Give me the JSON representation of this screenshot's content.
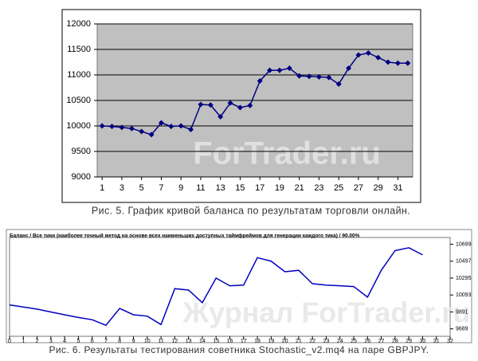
{
  "chart_data": [
    {
      "type": "line",
      "caption": "Рис. 5. График кривой баланса по результатам торговли онлайн.",
      "watermark": "ForTrader.ru",
      "x": [
        1,
        2,
        3,
        4,
        5,
        6,
        7,
        8,
        9,
        10,
        11,
        12,
        13,
        14,
        15,
        16,
        17,
        18,
        19,
        20,
        21,
        22,
        23,
        24,
        25,
        26,
        27,
        28,
        29,
        30,
        31,
        32
      ],
      "series": [
        {
          "color": "#000080",
          "values": [
            10000,
            9990,
            9970,
            9950,
            9890,
            9830,
            10060,
            9990,
            10000,
            9930,
            10420,
            10410,
            10180,
            10450,
            10360,
            10400,
            10880,
            11090,
            11090,
            11130,
            10980,
            10970,
            10960,
            10950,
            10820,
            11130,
            11390,
            11430,
            11340,
            11250,
            11230,
            11230
          ]
        }
      ],
      "xlim": [
        0.5,
        32.5
      ],
      "xticks": [
        1,
        3,
        5,
        7,
        9,
        11,
        13,
        15,
        17,
        19,
        21,
        23,
        25,
        27,
        29,
        31
      ],
      "ylim": [
        9000,
        12000
      ],
      "yticks": [
        9000,
        9500,
        10000,
        10500,
        11000,
        11500,
        12000
      ],
      "grid": true,
      "background": "#c0c0c0",
      "markers": true
    },
    {
      "type": "line",
      "title": "Баланс / Все тики (наиболее точный метод на основе всех наименьших доступных таймфреймов для генерации каждого тика) / 90.00%",
      "caption": "Рис. 6. Результаты тестирования советника Stochastic_v2.mq4 на паре GBPJPY.",
      "watermark": "Журнал ForTrader.ru",
      "x": [
        0,
        1,
        2,
        3,
        4,
        5,
        6,
        7,
        8,
        9,
        10,
        11,
        12,
        13,
        14,
        15,
        16,
        17,
        18,
        19,
        20,
        21,
        22,
        23,
        24,
        25,
        26,
        27,
        28,
        29,
        30
      ],
      "series": [
        {
          "color": "#0000c0",
          "values": [
            9975,
            9950,
            9925,
            9890,
            9857,
            9825,
            9798,
            9731,
            9933,
            9857,
            9841,
            9740,
            10169,
            10152,
            10001,
            10295,
            10203,
            10211,
            10539,
            10497,
            10371,
            10388,
            10228,
            10211,
            10203,
            10194,
            10068,
            10388,
            10623,
            10657,
            10573
          ]
        }
      ],
      "xlim": [
        0,
        32
      ],
      "xticks": [
        0,
        1,
        2,
        3,
        4,
        5,
        6,
        7,
        8,
        9,
        10,
        11,
        12,
        13,
        14,
        15,
        16,
        17,
        18,
        19,
        20,
        21,
        22,
        23,
        24,
        25,
        26,
        27,
        28,
        29,
        30,
        31,
        32
      ],
      "ylim": [
        9600,
        10780
      ],
      "yticks": [
        9689,
        9891,
        10093,
        10295,
        10497,
        10699
      ],
      "grid": false,
      "background": "#ffffff",
      "markers": false
    }
  ]
}
